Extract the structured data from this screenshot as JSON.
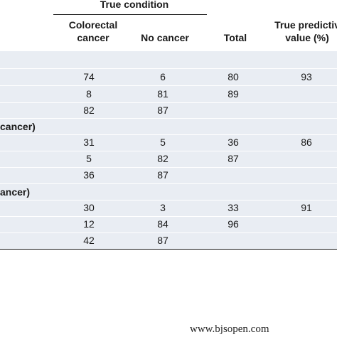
{
  "header": {
    "true_condition": "True condition",
    "col_colorectal": [
      "Colorectal",
      "cancer"
    ],
    "col_no_cancer": "No cancer",
    "col_total": "Total",
    "col_ppv": [
      "True predictiv",
      "value (%)"
    ]
  },
  "groups": [
    {
      "label": "",
      "rows": [
        {
          "colorectal": "74",
          "no_cancer": "6",
          "total": "80",
          "ppv": "93"
        },
        {
          "colorectal": "8",
          "no_cancer": "81",
          "total": "89",
          "ppv": ""
        },
        {
          "colorectal": "82",
          "no_cancer": "87",
          "total": "",
          "ppv": ""
        }
      ]
    },
    {
      "label": "cancer)",
      "rows": [
        {
          "colorectal": "31",
          "no_cancer": "5",
          "total": "36",
          "ppv": "86"
        },
        {
          "colorectal": "5",
          "no_cancer": "82",
          "total": "87",
          "ppv": ""
        },
        {
          "colorectal": "36",
          "no_cancer": "87",
          "total": "",
          "ppv": ""
        }
      ]
    },
    {
      "label": "ancer)",
      "rows": [
        {
          "colorectal": "30",
          "no_cancer": "3",
          "total": "33",
          "ppv": "91"
        },
        {
          "colorectal": "12",
          "no_cancer": "84",
          "total": "96",
          "ppv": ""
        },
        {
          "colorectal": "42",
          "no_cancer": "87",
          "total": "",
          "ppv": ""
        }
      ]
    }
  ],
  "watermark": "www.bjsopen.com"
}
